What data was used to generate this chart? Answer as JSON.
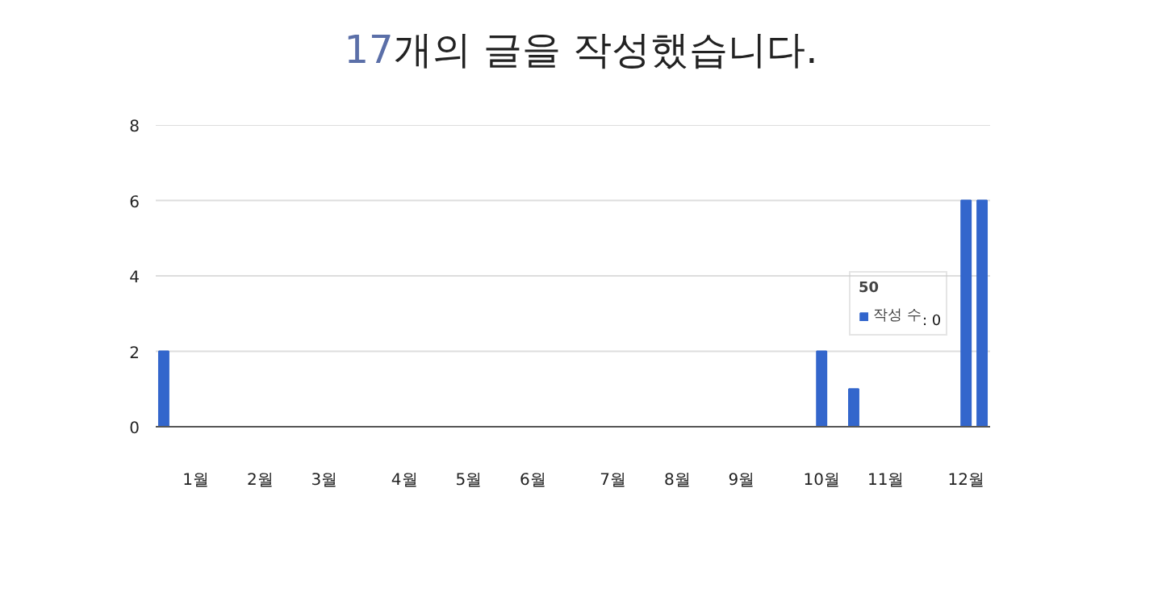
{
  "chart_data": {
    "type": "bar",
    "title": "17개의 글을 작성했습니다.",
    "categories": [
      null,
      null,
      "1월",
      null,
      null,
      null,
      "2월",
      null,
      null,
      null,
      "3월",
      null,
      null,
      null,
      null,
      "4월",
      null,
      null,
      null,
      "5월",
      null,
      null,
      null,
      "6월",
      null,
      null,
      null,
      null,
      "7월",
      null,
      null,
      null,
      "8월",
      null,
      null,
      null,
      "9월",
      null,
      null,
      null,
      null,
      "10월",
      null,
      null,
      null,
      "11월",
      null,
      null,
      null,
      null,
      "12월",
      null
    ],
    "series": [
      {
        "name": "작성 수",
        "color": "#3366cc",
        "values": [
          2,
          0,
          0,
          0,
          0,
          0,
          0,
          0,
          0,
          0,
          0,
          0,
          0,
          0,
          0,
          0,
          0,
          0,
          0,
          0,
          0,
          0,
          0,
          0,
          0,
          0,
          0,
          0,
          0,
          0,
          0,
          0,
          0,
          0,
          0,
          0,
          0,
          0,
          0,
          0,
          0,
          2,
          0,
          1,
          0,
          0,
          0,
          0,
          0,
          0,
          6,
          6
        ]
      }
    ],
    "ylim": [
      0,
      8
    ],
    "yticks": [
      0,
      2,
      4,
      6,
      8
    ],
    "grid": "y",
    "legend": "right",
    "legend_title": "50",
    "annotations": [
      ": 0"
    ]
  }
}
